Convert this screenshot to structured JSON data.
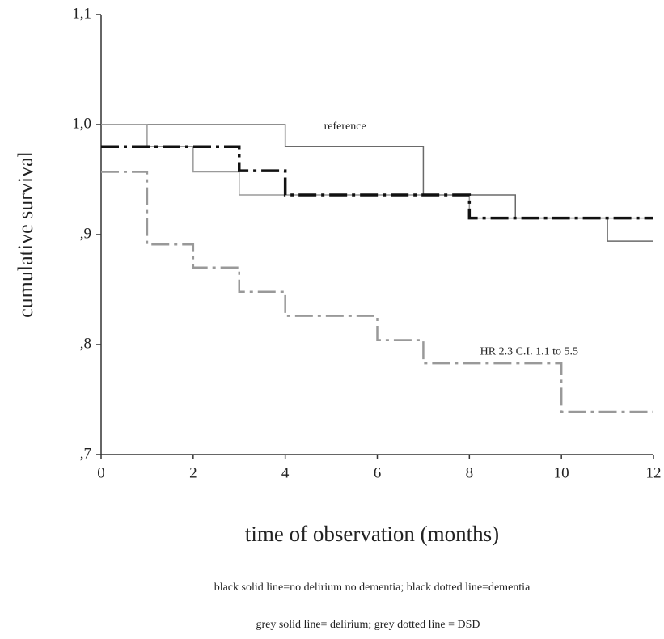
{
  "chart_data": {
    "type": "step",
    "ylabel": "cumulative survival",
    "xlabel": "time of observation (months)",
    "xlim": [
      0,
      12
    ],
    "xticks": [
      0,
      2,
      4,
      6,
      8,
      10,
      12
    ],
    "ylim": [
      0.7,
      1.1
    ],
    "yticks": [
      {
        "value": 0.7,
        "label": ",7"
      },
      {
        "value": 0.8,
        "label": ",8"
      },
      {
        "value": 0.9,
        "label": ",9"
      },
      {
        "value": 1.0,
        "label": "1,0"
      },
      {
        "value": 1.1,
        "label": "1,1"
      }
    ],
    "series": [
      {
        "color": "#6a6a6a",
        "dash": "solid",
        "width": 1.5,
        "x": [
          0,
          4,
          7,
          9,
          11,
          12
        ],
        "values": [
          1.0,
          0.98,
          0.936,
          0.915,
          0.894,
          0.894
        ]
      },
      {
        "color": "#9a9a9a",
        "dash": "solid",
        "width": 1.5,
        "x": [
          0,
          1,
          2,
          3,
          8,
          12
        ],
        "values": [
          1.0,
          0.98,
          0.957,
          0.936,
          0.915,
          0.915
        ]
      },
      {
        "color": "#111111",
        "dash": "dashdot",
        "width": 3.5,
        "x": [
          0,
          3,
          4,
          8,
          12
        ],
        "values": [
          0.98,
          0.958,
          0.936,
          0.915,
          0.915
        ]
      },
      {
        "color": "#999999",
        "dash": "dashdot",
        "width": 2.5,
        "x": [
          0,
          1,
          2,
          3,
          4,
          6,
          7,
          10,
          12
        ],
        "values": [
          0.957,
          0.891,
          0.87,
          0.848,
          0.826,
          0.804,
          0.783,
          0.739,
          0.739
        ]
      }
    ],
    "annotations": [
      {
        "text": "reference",
        "x": 5.3,
        "y": 0.998
      },
      {
        "text": "HR 2.3 C.I. 1.1 to 5.5",
        "x": 9.3,
        "y": 0.793
      }
    ],
    "footnotes": [
      "black solid line=no delirium no dementia; black dotted line=dementia",
      "grey solid line= delirium; grey dotted line = DSD"
    ]
  }
}
